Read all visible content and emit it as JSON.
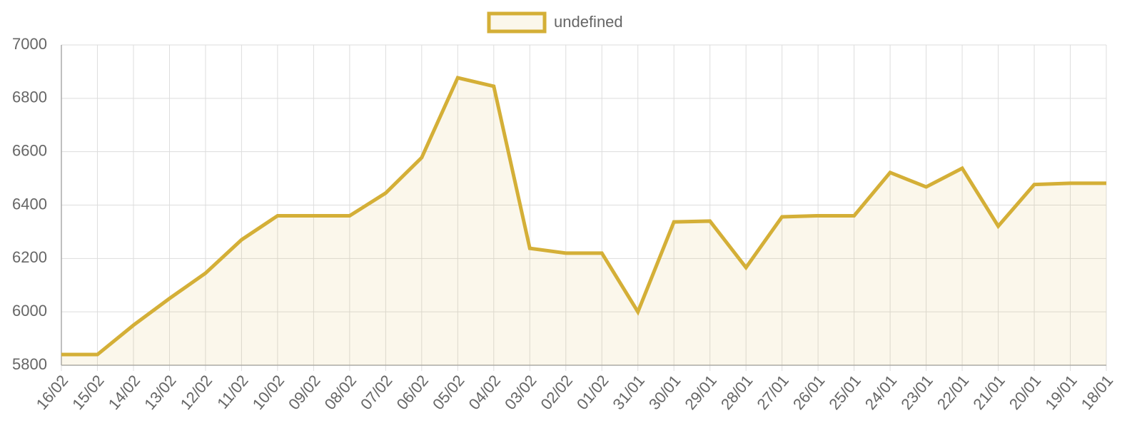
{
  "chart_data": {
    "type": "line",
    "categories": [
      "16/02",
      "15/02",
      "14/02",
      "13/02",
      "12/02",
      "11/02",
      "10/02",
      "09/02",
      "08/02",
      "07/02",
      "06/02",
      "05/02",
      "04/02",
      "03/02",
      "02/02",
      "01/02",
      "31/01",
      "30/01",
      "29/01",
      "28/01",
      "27/01",
      "26/01",
      "25/01",
      "24/01",
      "23/01",
      "22/01",
      "21/01",
      "20/01",
      "19/01",
      "18/01"
    ],
    "series": [
      {
        "name": "undefined",
        "color": "#d4af37",
        "values": [
          5840,
          5840,
          5950,
          6050,
          6145,
          6270,
          6360,
          6360,
          6360,
          6445,
          6578,
          6877,
          6845,
          6238,
          6220,
          6220,
          6000,
          6337,
          6340,
          6166,
          6356,
          6360,
          6360,
          6522,
          6468,
          6538,
          6321,
          6477,
          6482,
          6482
        ]
      }
    ],
    "ylim": [
      5800,
      7000
    ],
    "yticks": [
      5800,
      6000,
      6200,
      6400,
      6600,
      6800,
      7000
    ],
    "grid": true,
    "fill": true,
    "legend": "top"
  }
}
